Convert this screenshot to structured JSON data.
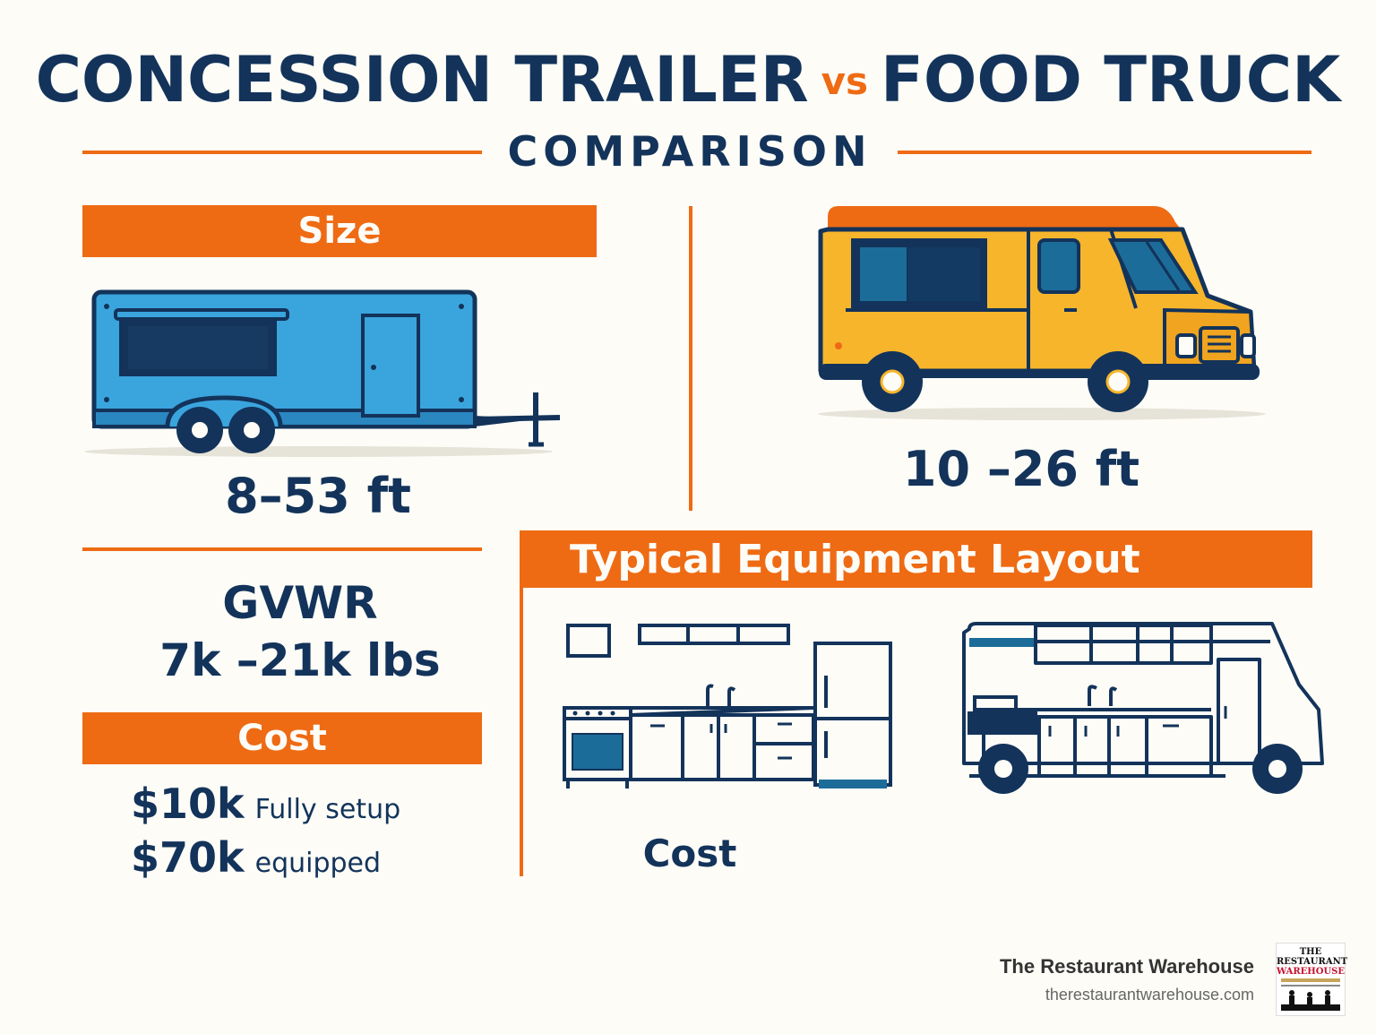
{
  "title": {
    "left": "CONCESSION TRAILER",
    "vs": "vs",
    "right": "FOOD TRUCK",
    "subtitle": "COMPARISON"
  },
  "size": {
    "header": "Size",
    "trailer_length": "8–53 ft",
    "truck_length": "10 –26 ft"
  },
  "gvwr": {
    "label": "GVWR",
    "value": "7k –21k lbs"
  },
  "cost": {
    "header": "Cost",
    "line1_amount": "$10k",
    "line1_text": "Fully setup",
    "line2_amount": "$70k",
    "line2_text": "equipped"
  },
  "equipment": {
    "header": "Typical Equipment Layout",
    "cost_label": "Cost"
  },
  "footer": {
    "company": "The Restaurant Warehouse",
    "url": "therestaurantwarehouse.com",
    "logo_line1": "THE",
    "logo_line2": "RESTAURANT",
    "logo_line3": "WAREHOUSE"
  },
  "colors": {
    "navy": "#13335a",
    "orange": "#ee6b14",
    "trailer_blue": "#3aa4dd",
    "truck_yellow": "#f7b52c",
    "background": "#fdfcf7"
  },
  "icons": {
    "trailer": "concession-trailer-icon",
    "truck": "food-truck-icon",
    "kitchen": "kitchen-layout-icon",
    "truck_layout": "food-truck-layout-icon"
  }
}
